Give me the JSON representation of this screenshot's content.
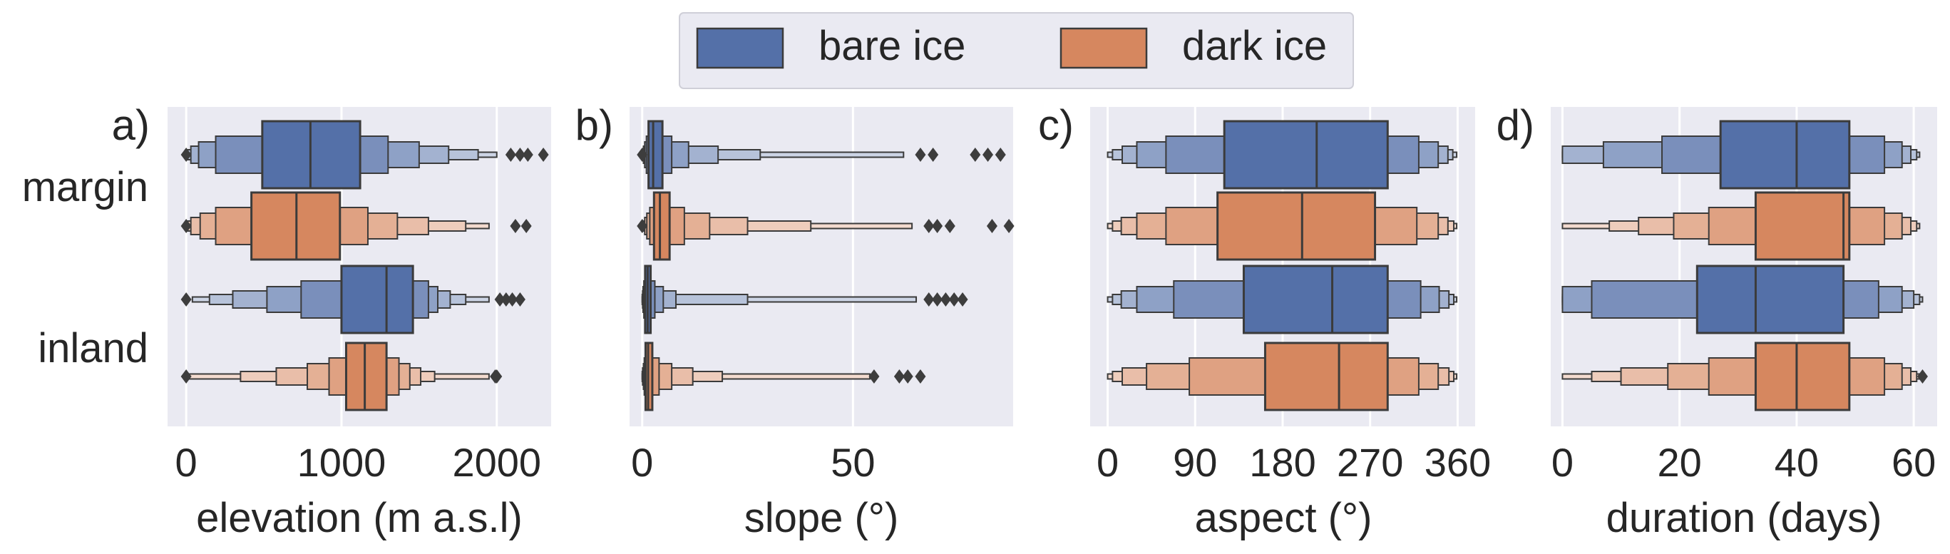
{
  "legend": {
    "items": [
      {
        "label": "bare ice",
        "color": "#5470a8"
      },
      {
        "label": "dark ice",
        "color": "#d6875f"
      }
    ]
  },
  "category_labels": [
    "margin",
    "inland"
  ],
  "colors": {
    "panel_bg": "#eaeaf2",
    "grid": "#ffffff",
    "line": "#3b3b3b"
  },
  "chart_data": [
    {
      "type": "boxen",
      "panel_label": "a)",
      "xlabel": "elevation (m a.s.l)",
      "xlim": [
        -120,
        2350
      ],
      "xticks": [
        0,
        1000,
        2000
      ],
      "categories": [
        "margin",
        "inland"
      ],
      "series": [
        {
          "name": "bare ice",
          "groups": [
            {
              "category": "margin",
              "median": 800,
              "levels": [
                [
                  490,
                  1120
                ],
                [
                  190,
                  1300
                ],
                [
                  80,
                  1500
                ],
                [
                  30,
                  1690
                ],
                [
                  10,
                  1880
                ],
                [
                  5,
                  2000
                ]
              ],
              "outliers": [
                0,
                2090,
                2150,
                2200,
                2300
              ]
            },
            {
              "category": "inland",
              "median": 1290,
              "levels": [
                [
                  1000,
                  1460
                ],
                [
                  740,
                  1560
                ],
                [
                  520,
                  1620
                ],
                [
                  300,
                  1700
                ],
                [
                  150,
                  1800
                ],
                [
                  40,
                  1950
                ]
              ],
              "outliers": [
                0,
                2020,
                2060,
                2100,
                2150
              ]
            }
          ]
        },
        {
          "name": "dark ice",
          "groups": [
            {
              "category": "margin",
              "median": 710,
              "levels": [
                [
                  420,
                  990
                ],
                [
                  190,
                  1170
                ],
                [
                  90,
                  1360
                ],
                [
                  30,
                  1560
                ],
                [
                  10,
                  1800
                ],
                [
                  5,
                  1950
                ]
              ],
              "outliers": [
                0,
                2120,
                2190
              ]
            },
            {
              "category": "inland",
              "median": 1150,
              "levels": [
                [
                  1030,
                  1290
                ],
                [
                  920,
                  1370
                ],
                [
                  780,
                  1440
                ],
                [
                  580,
                  1510
                ],
                [
                  350,
                  1600
                ],
                [
                  0,
                  1950
                ]
              ],
              "outliers": [
                0,
                1990,
                2000
              ]
            }
          ]
        }
      ]
    },
    {
      "type": "boxen",
      "panel_label": "b)",
      "xlabel": "slope (°)",
      "xlim": [
        -3,
        88
      ],
      "xticks": [
        0,
        50
      ],
      "categories": [
        "margin",
        "inland"
      ],
      "series": [
        {
          "name": "bare ice",
          "groups": [
            {
              "category": "margin",
              "median": 2.6,
              "levels": [
                [
                  1.5,
                  4.8
                ],
                [
                  1.0,
                  7
                ],
                [
                  0.6,
                  11
                ],
                [
                  0.3,
                  18
                ],
                [
                  0.1,
                  28
                ],
                [
                  0,
                  62
                ]
              ],
              "outliers": [
                0,
                66,
                69,
                79,
                82,
                85
              ]
            },
            {
              "category": "inland",
              "median": 1.3,
              "levels": [
                [
                  0.7,
                  2.0
                ],
                [
                  0.4,
                  3
                ],
                [
                  0.2,
                  5
                ],
                [
                  0.1,
                  8
                ],
                [
                  0,
                  25
                ],
                [
                  0,
                  65
                ]
              ],
              "outliers": [
                68,
                70,
                72,
                74,
                76
              ]
            }
          ]
        },
        {
          "name": "dark ice",
          "groups": [
            {
              "category": "margin",
              "median": 4.2,
              "levels": [
                [
                  2.8,
                  6.5
                ],
                [
                  1.8,
                  10
                ],
                [
                  1.1,
                  16
                ],
                [
                  0.6,
                  25
                ],
                [
                  0.2,
                  40
                ],
                [
                  0,
                  64
                ]
              ],
              "outliers": [
                0,
                68,
                70,
                73,
                83,
                87
              ]
            },
            {
              "category": "inland",
              "median": 1.4,
              "levels": [
                [
                  0.8,
                  2.4
                ],
                [
                  0.5,
                  4
                ],
                [
                  0.3,
                  7
                ],
                [
                  0.1,
                  12
                ],
                [
                  0,
                  19
                ],
                [
                  0,
                  54
                ]
              ],
              "outliers": [
                55,
                61,
                63,
                66
              ]
            }
          ]
        }
      ]
    },
    {
      "type": "boxen",
      "panel_label": "c)",
      "xlabel": "aspect (°)",
      "xlim": [
        -18,
        378
      ],
      "xticks": [
        0,
        90,
        180,
        270,
        360
      ],
      "categories": [
        "margin",
        "inland"
      ],
      "series": [
        {
          "name": "bare ice",
          "groups": [
            {
              "category": "margin",
              "median": 215,
              "levels": [
                [
                  120,
                  288
                ],
                [
                  60,
                  320
                ],
                [
                  30,
                  340
                ],
                [
                  15,
                  350
                ],
                [
                  5,
                  355
                ],
                [
                  0,
                  359
                ]
              ],
              "outliers": []
            },
            {
              "category": "inland",
              "median": 231,
              "levels": [
                [
                  140,
                  288
                ],
                [
                  68,
                  322
                ],
                [
                  30,
                  341
                ],
                [
                  14,
                  351
                ],
                [
                  5,
                  356
                ],
                [
                  0,
                  359
                ]
              ],
              "outliers": []
            }
          ]
        },
        {
          "name": "dark ice",
          "groups": [
            {
              "category": "margin",
              "median": 200,
              "levels": [
                [
                  113,
                  275
                ],
                [
                  60,
                  318
                ],
                [
                  30,
                  340
                ],
                [
                  14,
                  350
                ],
                [
                  5,
                  356
                ],
                [
                  0,
                  359
                ]
              ],
              "outliers": []
            },
            {
              "category": "inland",
              "median": 238,
              "levels": [
                [
                  162,
                  288
                ],
                [
                  84,
                  320
                ],
                [
                  40,
                  340
                ],
                [
                  15,
                  351
                ],
                [
                  5,
                  356
                ],
                [
                  0,
                  359
                ]
              ],
              "outliers": []
            }
          ]
        }
      ]
    },
    {
      "type": "boxen",
      "panel_label": "d)",
      "xlabel": "duration (days)",
      "xlim": [
        -2,
        64
      ],
      "xticks": [
        0,
        20,
        40,
        60
      ],
      "categories": [
        "margin",
        "inland"
      ],
      "series": [
        {
          "name": "bare ice",
          "groups": [
            {
              "category": "margin",
              "median": 40,
              "levels": [
                [
                  27,
                  49
                ],
                [
                  17,
                  55
                ],
                [
                  7,
                  58
                ],
                [
                  0,
                  59.5
                ],
                [
                  0,
                  60.5
                ],
                [
                  0,
                  61
                ]
              ],
              "outliers": []
            },
            {
              "category": "inland",
              "median": 33,
              "levels": [
                [
                  23,
                  48
                ],
                [
                  5,
                  54
                ],
                [
                  0,
                  58
                ],
                [
                  0,
                  60
                ],
                [
                  0,
                  61
                ],
                [
                  0,
                  61.5
                ]
              ],
              "outliers": []
            }
          ]
        },
        {
          "name": "dark ice",
          "groups": [
            {
              "category": "margin",
              "median": 48,
              "levels": [
                [
                  33,
                  49
                ],
                [
                  25,
                  55
                ],
                [
                  19,
                  58
                ],
                [
                  13,
                  59.5
                ],
                [
                  8,
                  60.5
                ],
                [
                  0,
                  61
                ]
              ],
              "outliers": []
            },
            {
              "category": "inland",
              "median": 40,
              "levels": [
                [
                  33,
                  49
                ],
                [
                  25,
                  55
                ],
                [
                  18,
                  58
                ],
                [
                  10,
                  59.5
                ],
                [
                  5,
                  60.5
                ],
                [
                  0,
                  61
                ]
              ],
              "outliers": [
                61.5
              ]
            }
          ]
        }
      ]
    }
  ]
}
